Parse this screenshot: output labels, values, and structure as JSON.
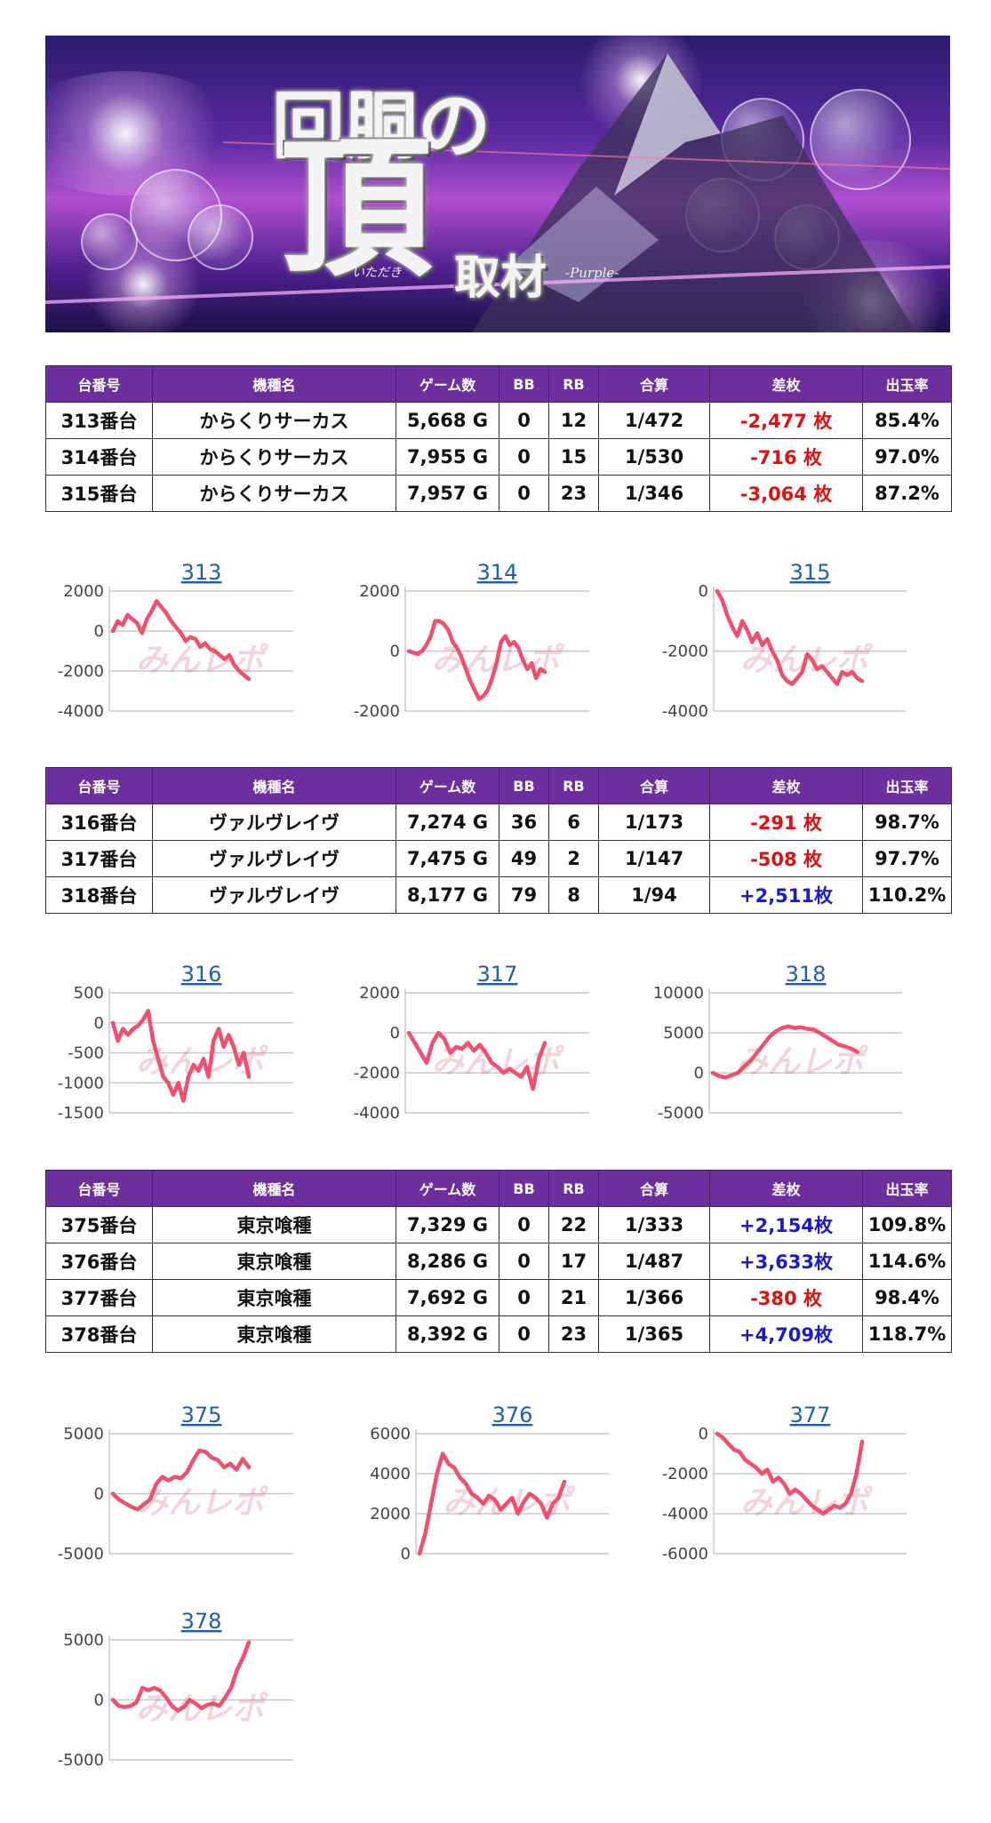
{
  "banner": {
    "title_line1": "回胴の",
    "title_big": "頂",
    "title_reading": "いただき",
    "title_sub": "取材",
    "title_purple": "-Purple-"
  },
  "headers": [
    "台番号",
    "機種名",
    "ゲーム数",
    "BB",
    "RB",
    "合算",
    "差枚",
    "出玉率"
  ],
  "tables": [
    {
      "rows": [
        {
          "no": "313番台",
          "model": "からくりサーカス",
          "games": "5,668 G",
          "bb": "0",
          "rb": "12",
          "total": "1/472",
          "diff": "-2,477 枚",
          "sign": "minus",
          "rate": "85.4%"
        },
        {
          "no": "314番台",
          "model": "からくりサーカス",
          "games": "7,955 G",
          "bb": "0",
          "rb": "15",
          "total": "1/530",
          "diff": "-716 枚",
          "sign": "minus",
          "rate": "97.0%"
        },
        {
          "no": "315番台",
          "model": "からくりサーカス",
          "games": "7,957 G",
          "bb": "0",
          "rb": "23",
          "total": "1/346",
          "diff": "-3,064 枚",
          "sign": "minus",
          "rate": "87.2%"
        }
      ]
    },
    {
      "rows": [
        {
          "no": "316番台",
          "model": "ヴァルヴレイヴ",
          "games": "7,274 G",
          "bb": "36",
          "rb": "6",
          "total": "1/173",
          "diff": "-291 枚",
          "sign": "minus",
          "rate": "98.7%"
        },
        {
          "no": "317番台",
          "model": "ヴァルヴレイヴ",
          "games": "7,475 G",
          "bb": "49",
          "rb": "2",
          "total": "1/147",
          "diff": "-508 枚",
          "sign": "minus",
          "rate": "97.7%"
        },
        {
          "no": "318番台",
          "model": "ヴァルヴレイヴ",
          "games": "8,177 G",
          "bb": "79",
          "rb": "8",
          "total": "1/94",
          "diff": "+2,511枚",
          "sign": "plus",
          "rate": "110.2%"
        }
      ]
    },
    {
      "rows": [
        {
          "no": "375番台",
          "model": "東京喰種",
          "games": "7,329 G",
          "bb": "0",
          "rb": "22",
          "total": "1/333",
          "diff": "+2,154枚",
          "sign": "plus",
          "rate": "109.8%"
        },
        {
          "no": "376番台",
          "model": "東京喰種",
          "games": "8,286 G",
          "bb": "0",
          "rb": "17",
          "total": "1/487",
          "diff": "+3,633枚",
          "sign": "plus",
          "rate": "114.6%"
        },
        {
          "no": "377番台",
          "model": "東京喰種",
          "games": "7,692 G",
          "bb": "0",
          "rb": "21",
          "total": "1/366",
          "diff": "-380 枚",
          "sign": "minus",
          "rate": "98.4%"
        },
        {
          "no": "378番台",
          "model": "東京喰種",
          "games": "8,392 G",
          "bb": "0",
          "rb": "23",
          "total": "1/365",
          "diff": "+4,709枚",
          "sign": "plus",
          "rate": "118.7%"
        }
      ]
    }
  ],
  "colors": {
    "line": "#f0506e",
    "header_bg": "#6d2f9e",
    "minus": "#e01010",
    "plus": "#1a1acc",
    "chart_title": "#1f5fb0"
  },
  "watermark": "みんレポ",
  "chart_data": [
    {
      "type": "line",
      "title": "313",
      "yticks": [
        2000,
        0,
        -2000,
        -4000
      ],
      "ylim": [
        -4000,
        2000
      ],
      "values": [
        0,
        500,
        300,
        800,
        600,
        400,
        -100,
        600,
        1000,
        1500,
        1200,
        900,
        500,
        200,
        -100,
        -500,
        -300,
        -400,
        -800,
        -600,
        -900,
        -1000,
        -1200,
        -1400,
        -1200,
        -1700,
        -2000,
        -2200,
        -2400
      ]
    },
    {
      "type": "line",
      "title": "314",
      "yticks": [
        2000,
        0,
        -2000
      ],
      "ylim": [
        -2000,
        2000
      ],
      "values": [
        0,
        -50,
        -100,
        0,
        200,
        500,
        1000,
        1000,
        900,
        700,
        300,
        100,
        -200,
        -600,
        -1000,
        -1300,
        -1600,
        -1500,
        -1300,
        -900,
        -400,
        300,
        500,
        200,
        300,
        100,
        -300,
        -600,
        -400,
        -900,
        -600,
        -700
      ]
    },
    {
      "type": "line",
      "title": "315",
      "yticks": [
        0,
        -2000,
        -4000
      ],
      "ylim": [
        -4000,
        0
      ],
      "values": [
        0,
        -300,
        -800,
        -1200,
        -1500,
        -1000,
        -1300,
        -1700,
        -1400,
        -1800,
        -1600,
        -2000,
        -2300,
        -2800,
        -3000,
        -3100,
        -2900,
        -2700,
        -2100,
        -2300,
        -2600,
        -2500,
        -2700,
        -2900,
        -3100,
        -2700,
        -2800,
        -2700,
        -2900,
        -3000
      ]
    },
    {
      "type": "line",
      "title": "316",
      "yticks": [
        500,
        0,
        -500,
        -1000,
        -1500
      ],
      "ylim": [
        -1500,
        500
      ],
      "values": [
        0,
        -300,
        -100,
        -200,
        -100,
        -50,
        50,
        200,
        -300,
        -600,
        -900,
        -1000,
        -1200,
        -1000,
        -1300,
        -900,
        -700,
        -800,
        -600,
        -900,
        -300,
        -100,
        -400,
        -200,
        -400,
        -700,
        -500,
        -900
      ]
    },
    {
      "type": "line",
      "title": "317",
      "yticks": [
        2000,
        0,
        -2000,
        -4000
      ],
      "ylim": [
        -4000,
        2000
      ],
      "values": [
        0,
        -500,
        -1000,
        -1500,
        -500,
        0,
        -300,
        -1000,
        -700,
        -800,
        -500,
        -900,
        -600,
        -1000,
        -1500,
        -1700,
        -2000,
        -1800,
        -2000,
        -2200,
        -1700,
        -2800,
        -1300,
        -500
      ]
    },
    {
      "type": "line",
      "title": "318",
      "yticks": [
        10000,
        5000,
        0,
        -5000
      ],
      "ylim": [
        -5000,
        10000
      ],
      "values": [
        0,
        -400,
        -600,
        -300,
        0,
        800,
        1500,
        2500,
        3500,
        4500,
        5200,
        5600,
        5800,
        5600,
        5700,
        5500,
        5400,
        5000,
        4500,
        4000,
        3500,
        3300,
        3000,
        2600
      ]
    },
    {
      "type": "line",
      "title": "375",
      "yticks": [
        5000,
        0,
        -5000
      ],
      "ylim": [
        -5000,
        5000
      ],
      "values": [
        0,
        -500,
        -800,
        -1100,
        -1300,
        -900,
        -500,
        800,
        1400,
        1100,
        1400,
        1300,
        1800,
        2800,
        3600,
        3500,
        3000,
        2800,
        2200,
        2500,
        2000,
        2900,
        2200
      ]
    },
    {
      "type": "line",
      "title": "376",
      "yticks": [
        6000,
        4000,
        2000,
        0
      ],
      "ylim": [
        0,
        6000
      ],
      "values": [
        0,
        1000,
        2500,
        4000,
        5000,
        4500,
        4300,
        3800,
        3500,
        3000,
        2800,
        2500,
        2900,
        2700,
        2200,
        2500,
        2800,
        2000,
        2600,
        3000,
        2800,
        2500,
        1800,
        2500,
        2800,
        3600
      ]
    },
    {
      "type": "line",
      "title": "377",
      "yticks": [
        0,
        -2000,
        -4000,
        -6000
      ],
      "ylim": [
        -6000,
        0
      ],
      "values": [
        0,
        -200,
        -500,
        -800,
        -900,
        -1300,
        -1500,
        -1700,
        -2000,
        -1800,
        -2400,
        -2200,
        -2500,
        -3000,
        -2800,
        -3000,
        -3300,
        -3600,
        -3800,
        -4000,
        -3800,
        -3600,
        -3700,
        -3500,
        -3000,
        -2000,
        -400
      ]
    },
    {
      "type": "line",
      "title": "378",
      "yticks": [
        5000,
        0,
        -5000
      ],
      "ylim": [
        -5000,
        5000
      ],
      "values": [
        0,
        -500,
        -600,
        -500,
        -200,
        1000,
        800,
        1000,
        800,
        200,
        -500,
        -900,
        -600,
        0,
        -300,
        -700,
        -400,
        -300,
        -500,
        200,
        1000,
        2500,
        3500,
        4800
      ]
    }
  ]
}
